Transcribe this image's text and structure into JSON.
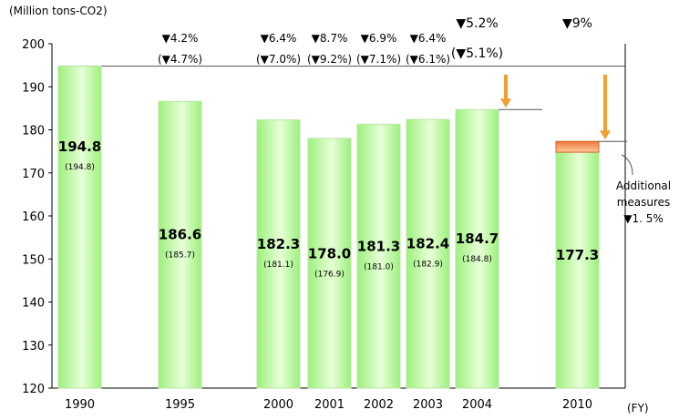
{
  "chart_data": {
    "type": "bar",
    "unit_label": "(Million tons-CO2)",
    "x_unit": "(FY)",
    "ylim": [
      120,
      200
    ],
    "yticks": [
      120,
      130,
      140,
      150,
      160,
      170,
      180,
      190,
      200
    ],
    "categories": [
      "1990",
      "1995",
      "2000",
      "2001",
      "2002",
      "2003",
      "2004",
      "2010"
    ],
    "values": [
      194.8,
      186.6,
      182.3,
      178.0,
      181.3,
      182.4,
      184.7,
      177.3
    ],
    "value_labels": [
      "194.8",
      "186.6",
      "182.3",
      "178.0",
      "181.3",
      "182.4",
      "184.7",
      "177.3"
    ],
    "sub_labels": [
      "(194.8)",
      "(185.7)",
      "(181.1)",
      "(176.9)",
      "(181.0)",
      "(182.9)",
      "(184.8)",
      ""
    ],
    "reduction_labels": [
      "",
      "▼4.2%",
      "▼6.4%",
      "▼8.7%",
      "▼6.9%",
      "▼6.4%",
      "▼5.2%",
      "▼9%"
    ],
    "reduction_sub_labels": [
      "",
      "(▼4.7%)",
      "(▼7.0%)",
      "(▼9.2%)",
      "(▼7.1%)",
      "(▼6.1%)",
      "(▼5.1%)",
      ""
    ],
    "additional_measures": {
      "label_lines": [
        "Additional",
        "measures",
        "▼1. 5%"
      ],
      "from": 177.3,
      "to": 174.8
    },
    "colors": {
      "bar_top": "#9cf07c",
      "bar_bottom": "#e8ffd8",
      "bar_stroke": "#b8e6a2",
      "addl_top": "#f07838",
      "addl_bottom": "#ffc8a0",
      "arrow": "#f0a030"
    }
  }
}
